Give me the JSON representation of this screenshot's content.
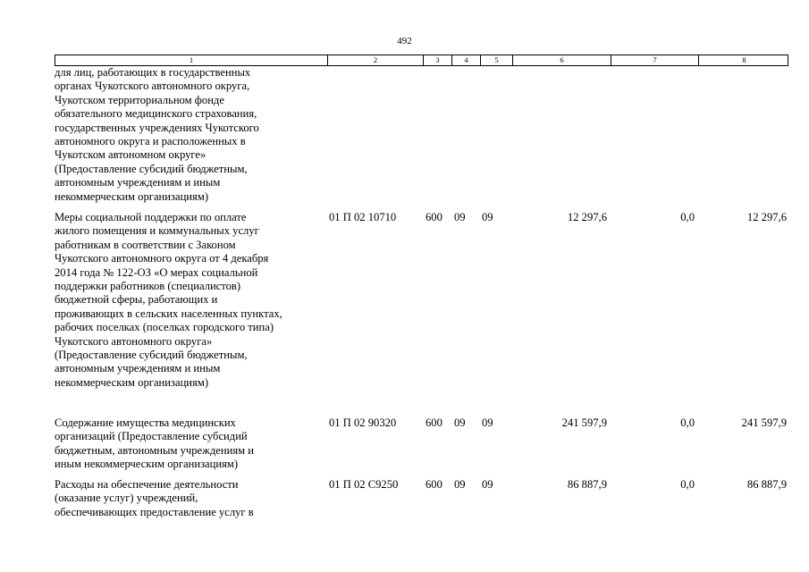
{
  "page_number": "492",
  "columns": [
    "1",
    "2",
    "3",
    "4",
    "5",
    "6",
    "7",
    "8"
  ],
  "rows": [
    {
      "name": "для лиц, работающих в государственных\nорганах Чукотского автономного округа,\nЧукотском территориальном фонде\nобязательного медицинского страхования,\nгосударственных учреждениях Чукотского\nавтономного округа и расположенных в\nЧукотском автономном округе»\n(Предоставление субсидий бюджетным,\nавтономным учреждениям и иным\nнекоммерческим организациям)",
      "code": "",
      "vr": "",
      "rz": "",
      "pr": "",
      "sum": "",
      "change": "",
      "total": ""
    },
    {
      "name": "Меры социальной поддержки по оплате\nжилого помещения и коммунальных услуг\nработникам в соответствии с Законом\nЧукотского автономного округа от 4 декабря\n2014 года № 122-ОЗ «О мерах социальной\nподдержки работников (специалистов)\nбюджетной сферы, работающих и\nпроживающих в сельских населенных пунктах,\nрабочих поселках (поселках городского типа)\nЧукотского автономного округа»\n(Предоставление субсидий бюджетным,\nавтономным учреждениям и иным\nнекоммерческим организациям)",
      "code": "01 П 02 10710",
      "vr": "600",
      "rz": "09",
      "pr": "09",
      "sum": "12 297,6",
      "change": "0,0",
      "total": "12 297,6"
    },
    {
      "name": "Содержание имущества медицинских\nорганизаций (Предоставление субсидий\nбюджетным, автономным учреждениям и\nиным некоммерческим организациям)",
      "code": "01 П 02 90320",
      "vr": "600",
      "rz": "09",
      "pr": "09",
      "sum": "241 597,9",
      "change": "0,0",
      "total": "241 597,9"
    },
    {
      "name": "Расходы на обеспечение деятельности\n(оказание услуг) учреждений,\nобеспечивающих предоставление услуг в",
      "code": "01 П 02 С9250",
      "vr": "600",
      "rz": "09",
      "pr": "09",
      "sum": "86 887,9",
      "change": "0,0",
      "total": "86 887,9"
    }
  ]
}
